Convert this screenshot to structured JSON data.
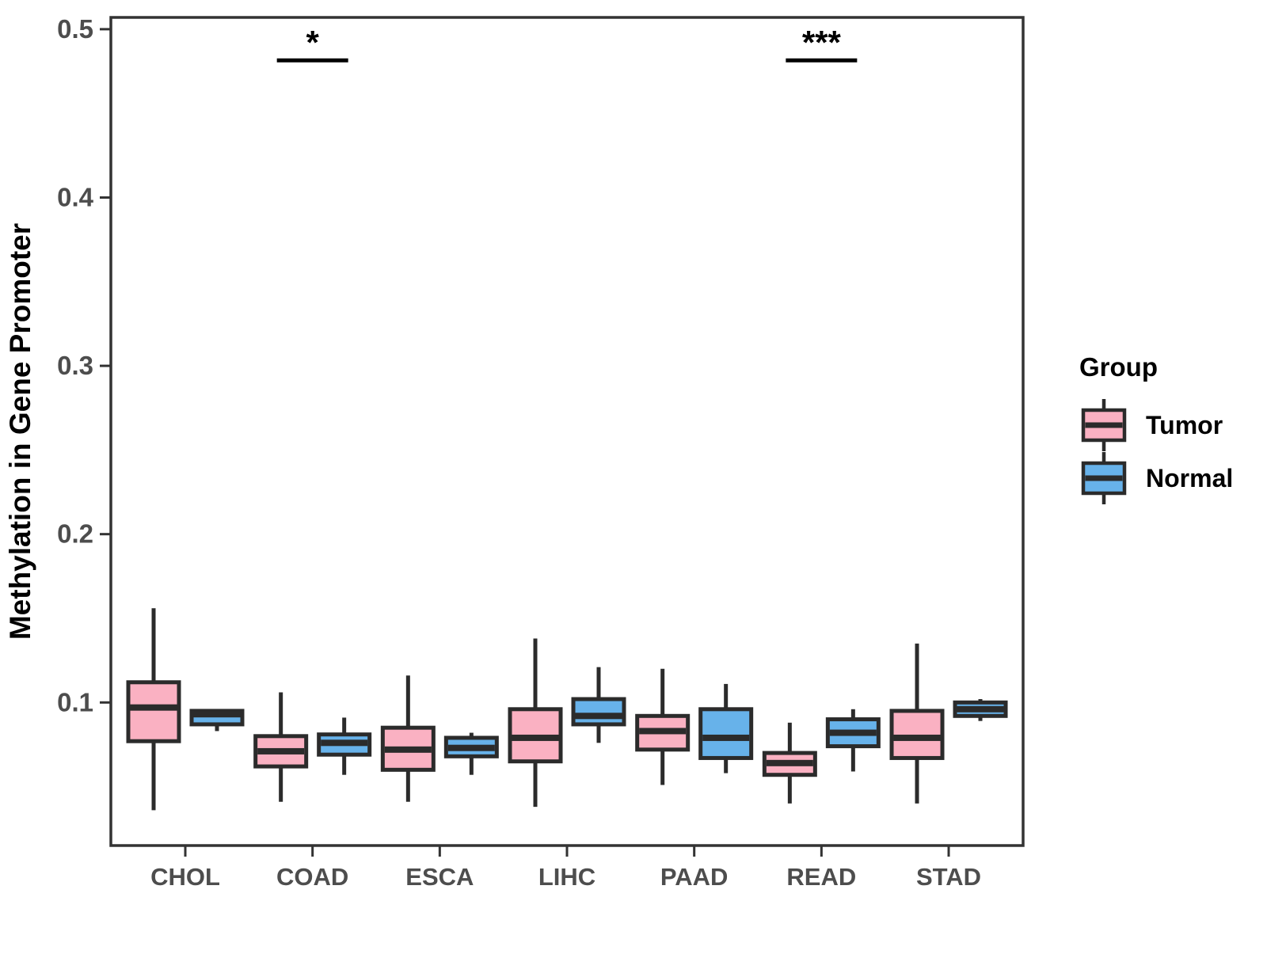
{
  "y_axis": {
    "label": "Methylation in Gene Promoter",
    "tick_labels": [
      "0.1",
      "0.2",
      "0.3",
      "0.4",
      "0.5"
    ],
    "tick_values": [
      0.1,
      0.2,
      0.3,
      0.4,
      0.5
    ]
  },
  "x_axis": {
    "label": ""
  },
  "legend": {
    "title": "Group",
    "entries": [
      {
        "label": "Tumor",
        "color": "#FAB1C2"
      },
      {
        "label": "Normal",
        "color": "#67B2EA"
      }
    ]
  },
  "colors": {
    "tumor_fill": "#FAB1C2",
    "normal_fill": "#67B2EA",
    "box_stroke": "#2B2B2B",
    "panel_border": "#333333",
    "axis_text": "#4d4d4d",
    "annotation": "#000000"
  },
  "chart_data": {
    "type": "boxplot",
    "title": "",
    "xlabel": "",
    "ylabel": "Methylation in Gene Promoter",
    "ylim": [
      0.015,
      0.507
    ],
    "grid": "off",
    "legend_position": "right",
    "categories": [
      "CHOL",
      "COAD",
      "ESCA",
      "LIHC",
      "PAAD",
      "READ",
      "STAD"
    ],
    "series": [
      {
        "name": "Tumor",
        "color": "#FAB1C2",
        "boxes": [
          {
            "category": "CHOL",
            "min": 0.036,
            "q1": 0.077,
            "median": 0.097,
            "q3": 0.112,
            "max": 0.156
          },
          {
            "category": "COAD",
            "min": 0.041,
            "q1": 0.062,
            "median": 0.071,
            "q3": 0.08,
            "max": 0.106
          },
          {
            "category": "ESCA",
            "min": 0.041,
            "q1": 0.06,
            "median": 0.072,
            "q3": 0.085,
            "max": 0.116
          },
          {
            "category": "LIHC",
            "min": 0.038,
            "q1": 0.065,
            "median": 0.079,
            "q3": 0.096,
            "max": 0.138
          },
          {
            "category": "PAAD",
            "min": 0.051,
            "q1": 0.072,
            "median": 0.083,
            "q3": 0.092,
            "max": 0.12
          },
          {
            "category": "READ",
            "min": 0.04,
            "q1": 0.057,
            "median": 0.064,
            "q3": 0.07,
            "max": 0.088
          },
          {
            "category": "STAD",
            "min": 0.04,
            "q1": 0.067,
            "median": 0.079,
            "q3": 0.095,
            "max": 0.135
          }
        ]
      },
      {
        "name": "Normal",
        "color": "#67B2EA",
        "boxes": [
          {
            "category": "CHOL",
            "min": 0.083,
            "q1": 0.087,
            "median": 0.093,
            "q3": 0.095,
            "max": 0.095
          },
          {
            "category": "COAD",
            "min": 0.057,
            "q1": 0.069,
            "median": 0.076,
            "q3": 0.081,
            "max": 0.091
          },
          {
            "category": "ESCA",
            "min": 0.057,
            "q1": 0.068,
            "median": 0.073,
            "q3": 0.079,
            "max": 0.082
          },
          {
            "category": "LIHC",
            "min": 0.076,
            "q1": 0.087,
            "median": 0.092,
            "q3": 0.102,
            "max": 0.121
          },
          {
            "category": "PAAD",
            "min": 0.058,
            "q1": 0.067,
            "median": 0.079,
            "q3": 0.096,
            "max": 0.111
          },
          {
            "category": "READ",
            "min": 0.059,
            "q1": 0.074,
            "median": 0.082,
            "q3": 0.09,
            "max": 0.096
          },
          {
            "category": "STAD",
            "min": 0.089,
            "q1": 0.092,
            "median": 0.096,
            "q3": 0.1,
            "max": 0.102
          }
        ]
      }
    ],
    "significance": [
      {
        "category": "COAD",
        "label": "*",
        "bar_value": 0.4815,
        "label_value": 0.492
      },
      {
        "category": "READ",
        "label": "***",
        "bar_value": 0.4815,
        "label_value": 0.492
      }
    ]
  }
}
